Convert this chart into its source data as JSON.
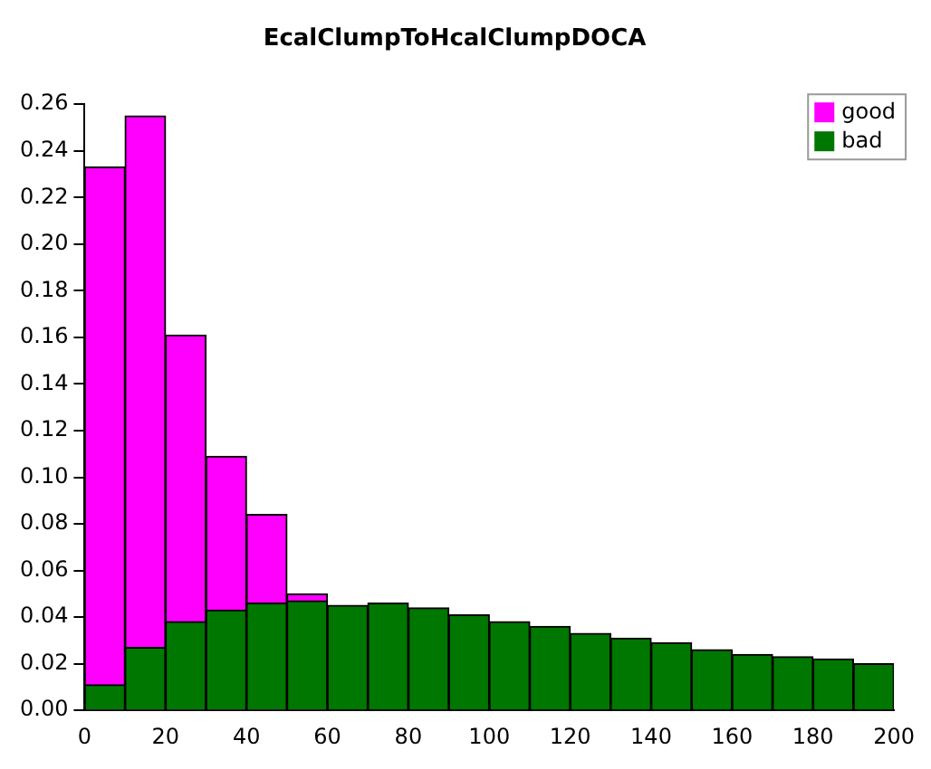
{
  "chart_data": {
    "type": "histogram",
    "title": "EcalClumpToHcalClumpDOCA",
    "bins": [
      0,
      10,
      20,
      30,
      40,
      50,
      60,
      70,
      80,
      90,
      100,
      110,
      120,
      130,
      140,
      150,
      160,
      170,
      180,
      190,
      200
    ],
    "series": [
      {
        "name": "good",
        "color": "#ff00ff",
        "values": [
          0.233,
          0.255,
          0.161,
          0.109,
          0.084,
          0.05,
          null,
          null,
          null,
          null,
          null,
          null,
          null,
          null,
          null,
          null,
          null,
          null,
          null,
          null
        ]
      },
      {
        "name": "bad",
        "color": "#007700",
        "values": [
          0.011,
          0.027,
          0.038,
          0.043,
          0.046,
          0.047,
          0.045,
          0.046,
          0.044,
          0.041,
          0.038,
          0.036,
          0.033,
          0.031,
          0.029,
          0.026,
          0.024,
          0.023,
          0.022,
          0.02
        ]
      }
    ],
    "xlim": [
      0,
      200
    ],
    "xticks": [
      0,
      20,
      40,
      60,
      80,
      100,
      120,
      140,
      160,
      180,
      200
    ],
    "ylim": [
      0,
      0.26
    ],
    "yticks": [
      {
        "value": 0,
        "label": "0.00"
      },
      0.02,
      0.04,
      0.06,
      0.08,
      {
        "value": 0.1,
        "label": "0.10"
      },
      0.12,
      0.14,
      0.16,
      0.18,
      {
        "value": 0.2,
        "label": "0.20"
      },
      0.22,
      0.24,
      0.26
    ],
    "grid": false,
    "legend": "top right"
  }
}
